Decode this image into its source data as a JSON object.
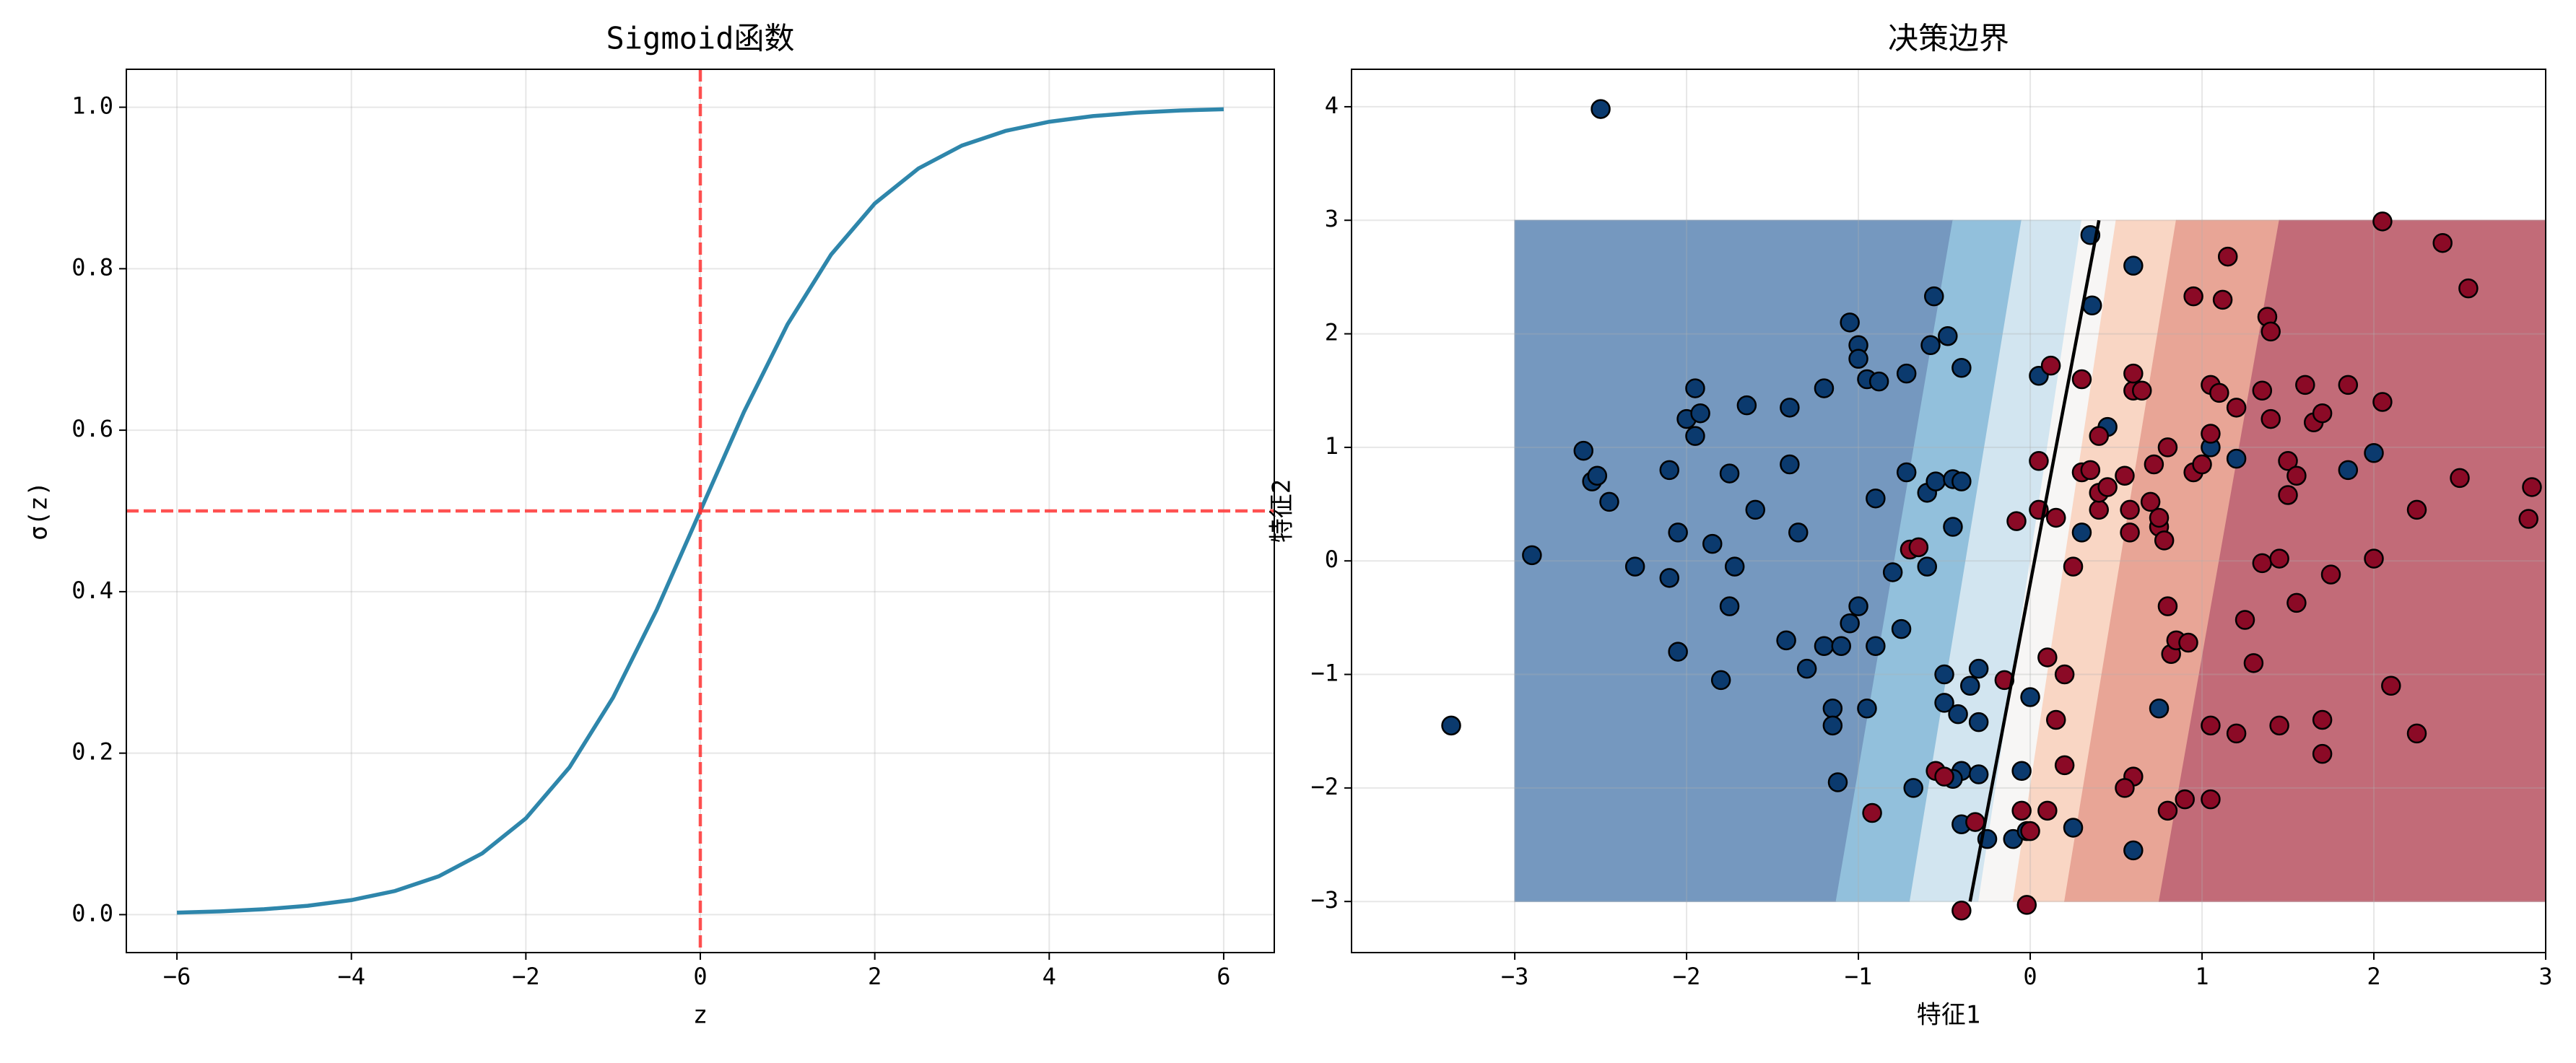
{
  "chart_data": [
    {
      "type": "line",
      "title": "Sigmoid函数",
      "x_label": "z",
      "y_label": "σ(z)",
      "xlim": [
        -6.58,
        6.58
      ],
      "ylim": [
        -0.047,
        1.047
      ],
      "xticks": [
        {
          "value": -6,
          "label": "−6"
        },
        {
          "value": -4,
          "label": "−4"
        },
        {
          "value": -2,
          "label": "−2"
        },
        0,
        2,
        4,
        6
      ],
      "yticks": [
        {
          "value": 0,
          "label": "0.0"
        },
        0.2,
        0.4,
        0.6,
        0.8,
        {
          "value": 1,
          "label": "1.0"
        }
      ],
      "grid": true,
      "x": [
        -6,
        -5.5,
        -5,
        -4.5,
        -4,
        -3.5,
        -3,
        -2.5,
        -2,
        -1.5,
        -1,
        -0.5,
        0,
        0.5,
        1,
        1.5,
        2,
        2.5,
        3,
        3.5,
        4,
        4.5,
        5,
        5.5,
        6
      ],
      "series": [
        {
          "color": "#2e86ab",
          "values": [
            0.0025,
            0.0041,
            0.0067,
            0.011,
            0.018,
            0.0293,
            0.0474,
            0.0759,
            0.1192,
            0.1824,
            0.2689,
            0.3775,
            0.5,
            0.6225,
            0.7311,
            0.8176,
            0.8808,
            0.9241,
            0.9526,
            0.9707,
            0.982,
            0.989,
            0.9933,
            0.9959,
            0.9975
          ]
        }
      ],
      "vline": 0,
      "hline": 0.5,
      "ref_color": "#ff3333"
    },
    {
      "type": "scatter",
      "title": "决策边界",
      "x_label": "特征1",
      "y_label": "特征2",
      "xlim": [
        -3.95,
        3.0
      ],
      "ylim": [
        -3.45,
        4.33
      ],
      "xticks": [
        {
          "value": -3,
          "label": "−3"
        },
        {
          "value": -2,
          "label": "−2"
        },
        {
          "value": -1,
          "label": "−1"
        },
        0,
        1,
        2,
        3
      ],
      "yticks": [
        {
          "value": -3,
          "label": "−3"
        },
        {
          "value": -2,
          "label": "−2"
        },
        {
          "value": -1,
          "label": "−1"
        },
        0,
        1,
        2,
        3,
        4
      ],
      "grid": true,
      "regions": {
        "y": [
          -3,
          3
        ],
        "edges_bottom": [
          -3,
          -1.13,
          -0.7,
          -0.3,
          -0.1,
          0.2,
          0.75,
          3
        ],
        "edges_top": [
          -3,
          -0.45,
          -0.05,
          0.3,
          0.5,
          0.85,
          1.45,
          3
        ],
        "colors": [
          "#7598bf",
          "#92c0dc",
          "#d2e5f0",
          "#f7f6f5",
          "#f9d6c4",
          "#e8a596",
          "#c26b78"
        ]
      },
      "boundary": {
        "x": [
          -0.35,
          0.4
        ],
        "y": [
          -3,
          3
        ],
        "color": "#000000"
      },
      "series": [
        {
          "color": "#0b3a6e",
          "x": [
            -2.5,
            -3.37,
            -2.9,
            -2.6,
            -2.55,
            -2.52,
            -2.45,
            -2.1,
            -2.0,
            -1.95,
            -1.95,
            -1.92,
            -2.05,
            -2.1,
            -2.05,
            -2.3,
            -1.8,
            -1.85,
            -1.75,
            -1.72,
            -1.75,
            -1.65,
            -1.6,
            -1.4,
            -1.4,
            -1.35,
            -1.42,
            -1.3,
            -1.2,
            -1.2,
            -1.15,
            -1.15,
            -1.12,
            -1.1,
            -1.05,
            -1.0,
            -1.05,
            -1.0,
            -1.0,
            -0.95,
            -0.9,
            -0.88,
            -0.95,
            -0.9,
            -0.8,
            -0.75,
            -0.72,
            -0.72,
            -0.68,
            -0.6,
            -0.55,
            -0.6,
            -0.58,
            -0.56,
            -0.48,
            -0.45,
            -0.4,
            -0.45,
            -0.4,
            -0.5,
            -0.5,
            -0.42,
            -0.4,
            -0.45,
            -0.4,
            -0.35,
            -0.3,
            -0.3,
            -0.3,
            -0.25,
            -0.1,
            -0.05,
            0.0,
            -0.02,
            0.05,
            0.25,
            0.35,
            0.36,
            0.3,
            0.45,
            0.6,
            0.6,
            0.75,
            1.05,
            1.2,
            1.85,
            2.0
          ],
          "y": [
            3.98,
            -1.45,
            0.05,
            0.97,
            0.7,
            0.75,
            0.52,
            0.8,
            1.25,
            1.52,
            1.1,
            1.3,
            0.25,
            -0.15,
            -0.8,
            -0.05,
            -1.05,
            0.15,
            0.77,
            -0.05,
            -0.4,
            1.37,
            0.45,
            1.35,
            0.85,
            0.25,
            -0.7,
            -0.95,
            -0.75,
            1.52,
            -1.3,
            -1.45,
            -1.95,
            -0.75,
            -0.55,
            -0.4,
            2.1,
            1.9,
            1.78,
            1.6,
            0.55,
            1.58,
            -1.3,
            -0.75,
            -0.1,
            -0.6,
            0.78,
            1.65,
            -2.0,
            0.6,
            0.7,
            -0.05,
            1.9,
            2.33,
            1.98,
            0.72,
            0.7,
            0.3,
            1.7,
            -1.0,
            -1.25,
            -1.35,
            -1.85,
            -1.92,
            -2.32,
            -1.1,
            -0.95,
            -1.42,
            -1.88,
            -2.45,
            -2.45,
            -1.85,
            -1.2,
            -2.38,
            1.63,
            -2.35,
            2.87,
            2.25,
            0.25,
            1.18,
            2.6,
            -2.55,
            -1.3,
            1.0,
            0.9,
            0.8,
            0.95
          ]
        },
        {
          "color": "#8b0a26",
          "x": [
            -0.92,
            -0.7,
            -0.65,
            -0.55,
            -0.5,
            -0.32,
            -0.4,
            -0.15,
            -0.08,
            -0.05,
            -0.02,
            0.0,
            0.05,
            0.1,
            0.12,
            0.15,
            0.2,
            0.2,
            0.05,
            0.15,
            0.25,
            0.3,
            0.35,
            0.3,
            0.4,
            0.4,
            0.4,
            0.45,
            0.55,
            0.58,
            0.58,
            0.6,
            0.6,
            0.65,
            0.7,
            0.72,
            0.75,
            0.75,
            0.78,
            0.8,
            0.8,
            0.82,
            0.85,
            0.92,
            0.95,
            0.95,
            1.0,
            1.05,
            1.05,
            1.1,
            1.12,
            1.15,
            1.2,
            1.25,
            1.3,
            1.35,
            1.35,
            1.38,
            1.4,
            1.4,
            1.45,
            1.5,
            1.5,
            1.55,
            1.55,
            1.6,
            1.65,
            1.7,
            1.7,
            1.7,
            1.75,
            1.85,
            2.0,
            2.05,
            2.05,
            2.1,
            2.25,
            2.25,
            2.4,
            2.5,
            2.55,
            2.9,
            2.92,
            1.05,
            1.2,
            1.45,
            1.05,
            0.9,
            0.8,
            0.6,
            0.55,
            0.1
          ],
          "y": [
            -2.22,
            0.1,
            0.12,
            -1.85,
            -1.9,
            -2.3,
            -3.08,
            -1.05,
            0.35,
            -2.2,
            -3.03,
            -2.38,
            0.45,
            -0.85,
            1.72,
            -1.4,
            -1.8,
            -1.0,
            0.88,
            0.38,
            -0.05,
            0.78,
            0.8,
            1.6,
            1.1,
            0.45,
            0.6,
            0.65,
            0.75,
            0.25,
            0.45,
            1.5,
            1.65,
            1.5,
            0.52,
            0.85,
            0.3,
            0.38,
            0.18,
            1.0,
            -0.4,
            -0.82,
            -0.7,
            -0.72,
            0.78,
            2.33,
            0.85,
            1.55,
            1.12,
            1.48,
            2.3,
            2.68,
            1.35,
            -0.52,
            -0.9,
            -0.02,
            1.5,
            2.15,
            2.02,
            1.25,
            0.02,
            0.58,
            0.88,
            0.75,
            -0.37,
            1.55,
            1.22,
            1.3,
            -1.7,
            -1.4,
            -0.12,
            1.55,
            0.02,
            1.4,
            2.99,
            -1.1,
            0.45,
            -1.52,
            2.8,
            0.73,
            2.4,
            0.37,
            0.65,
            -1.45,
            -1.52,
            -1.45,
            -2.1,
            -2.1,
            -2.2,
            -1.9,
            -2.0,
            -2.2
          ]
        }
      ]
    }
  ]
}
